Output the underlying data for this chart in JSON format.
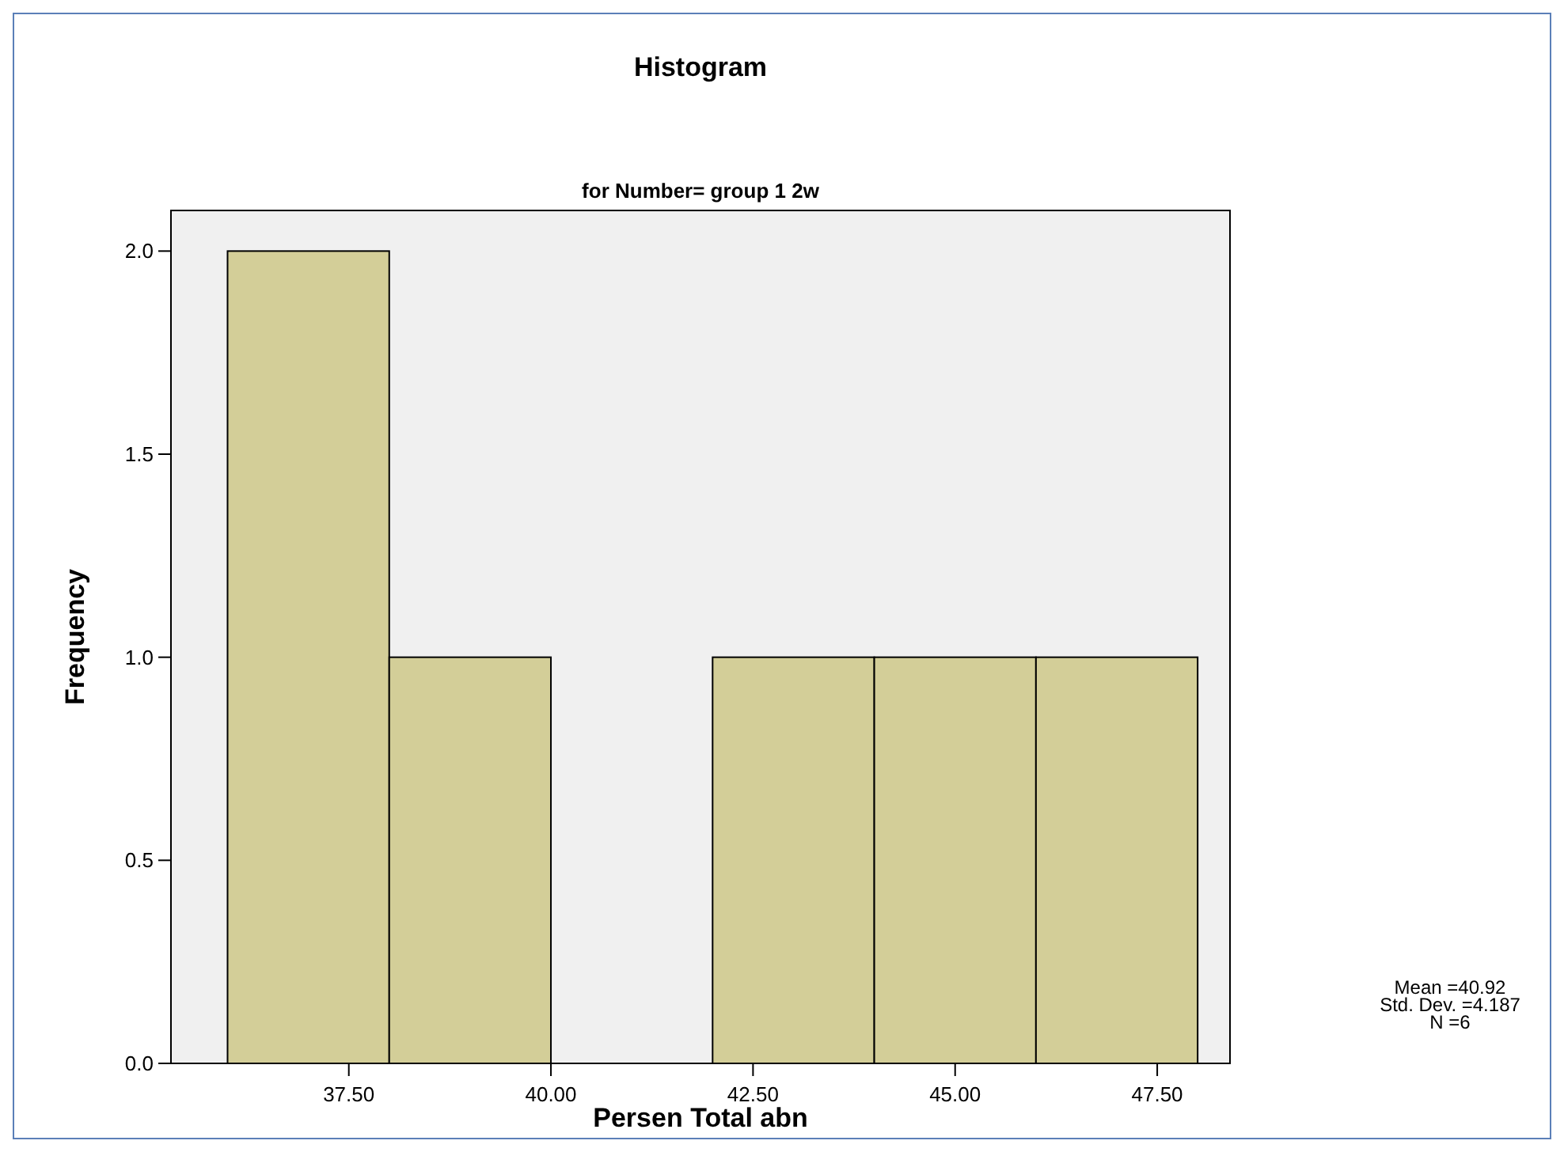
{
  "chart_data": {
    "type": "histogram",
    "title": "Histogram",
    "subtitle": "for Number= group 1 2w",
    "xlabel": "Persen Total abn",
    "ylabel": "Frequency",
    "bins": [
      36,
      38,
      40,
      42,
      44,
      46,
      48
    ],
    "values": [
      2,
      1,
      0,
      1,
      1,
      1
    ],
    "color": "#d3ce98",
    "xlim": [
      35.3,
      48.4
    ],
    "xticks": [
      {
        "value": 37.5,
        "label": "37.50"
      },
      {
        "value": 40,
        "label": "40.00"
      },
      {
        "value": 42.5,
        "label": "42.50"
      },
      {
        "value": 45,
        "label": "45.00"
      },
      {
        "value": 47.5,
        "label": "47.50"
      }
    ],
    "ylim": [
      0,
      2.1
    ],
    "yticks": [
      {
        "value": 0,
        "label": "0.0"
      },
      {
        "value": 0.5,
        "label": "0.5"
      },
      {
        "value": 1,
        "label": "1.0"
      },
      {
        "value": 1.5,
        "label": "1.5"
      },
      {
        "value": 2,
        "label": "2.0"
      }
    ],
    "grid": false,
    "annotations": [
      "Mean =40.92",
      "Std. Dev. =4.187",
      "N =6"
    ]
  }
}
